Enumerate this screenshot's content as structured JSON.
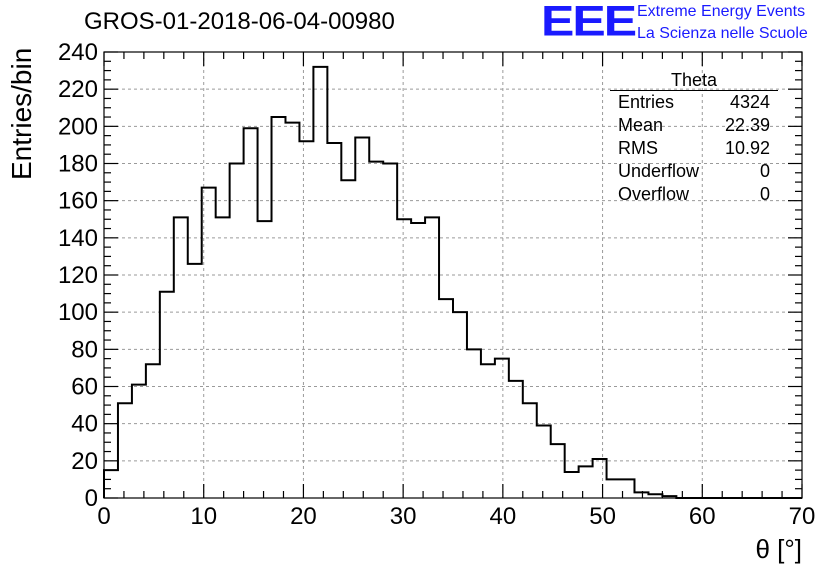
{
  "header": {
    "run_title": "GROS-01-2018-06-04-00980",
    "logo_text": "EEE",
    "logo_line1": "Extreme Energy Events",
    "logo_line2": "La Scienza nelle Scuole",
    "logo_color": "#1a1aff"
  },
  "stats_box": {
    "title": "Theta",
    "rows": [
      {
        "label": "Entries",
        "value": "4324"
      },
      {
        "label": "Mean",
        "value": "22.39"
      },
      {
        "label": "RMS",
        "value": "10.92"
      },
      {
        "label": "Underflow",
        "value": "0"
      },
      {
        "label": "Overflow",
        "value": "0"
      }
    ]
  },
  "chart_data": {
    "type": "bar",
    "histogram": true,
    "title": "GROS-01-2018-06-04-00980",
    "xlabel": "θ [°]",
    "ylabel": "Entries/bin",
    "xlim": [
      0,
      70
    ],
    "ylim": [
      0,
      240
    ],
    "bin_width": 1.4,
    "x_ticks": [
      0,
      10,
      20,
      30,
      40,
      50,
      60,
      70
    ],
    "y_ticks": [
      0,
      20,
      40,
      60,
      80,
      100,
      120,
      140,
      160,
      180,
      200,
      220,
      240
    ],
    "grid": true,
    "values": [
      15,
      51,
      61,
      72,
      111,
      151,
      126,
      167,
      151,
      180,
      199,
      149,
      205,
      202,
      192,
      232,
      191,
      171,
      194,
      181,
      180,
      150,
      148,
      151,
      107,
      100,
      80,
      72,
      75,
      63,
      51,
      39,
      29,
      14,
      17,
      21,
      10,
      10,
      3,
      2,
      1,
      0,
      0,
      0,
      0,
      0,
      0,
      0,
      0,
      0
    ]
  }
}
